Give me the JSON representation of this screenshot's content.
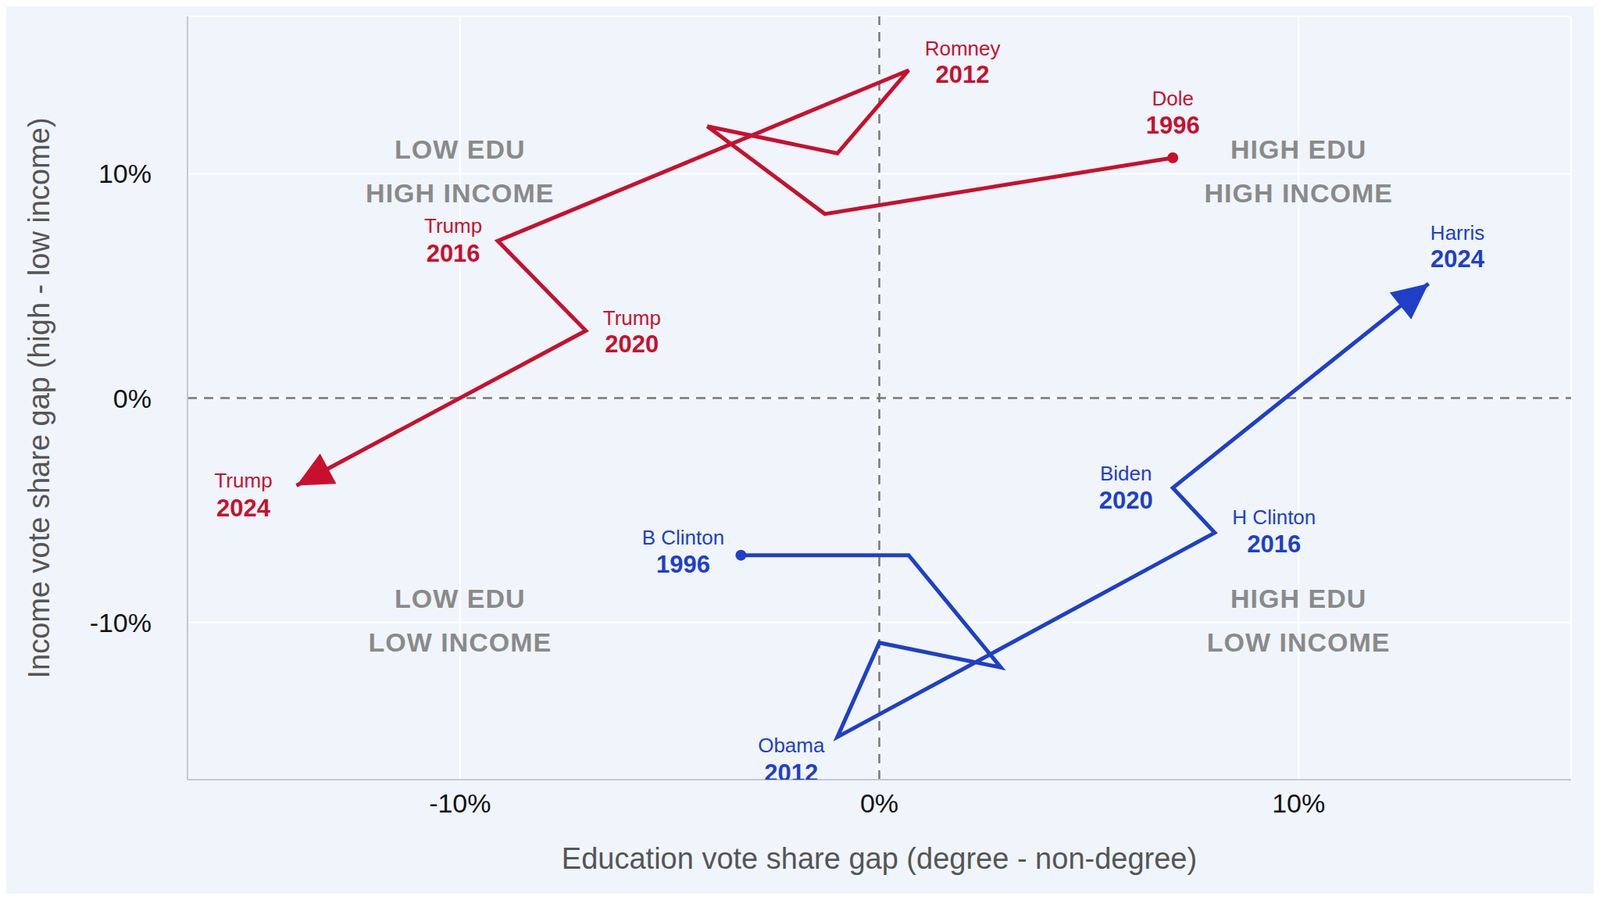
{
  "chart_data": {
    "type": "scatter",
    "xlabel": "Education vote share gap (degree - non-degree)",
    "ylabel": "Income vote share gap (high - low income)",
    "xlim": [
      -16.5,
      16.5
    ],
    "ylim": [
      -17,
      17
    ],
    "xticks": [
      {
        "value": -10,
        "label": "-10%"
      },
      {
        "value": 0,
        "label": "0%"
      },
      {
        "value": 10,
        "label": "10%"
      }
    ],
    "yticks": [
      {
        "value": -10,
        "label": "-10%"
      },
      {
        "value": 0,
        "label": "0%"
      },
      {
        "value": 10,
        "label": "10%"
      }
    ],
    "grid": true,
    "series": [
      {
        "color": "#c8102e",
        "line_style": "solid",
        "marker": "circle",
        "x": [
          7.0,
          -1.3,
          -4.1,
          -1.0,
          0.7,
          -9.1,
          -7.0,
          -13.9
        ],
        "y": [
          10.7,
          8.2,
          12.1,
          10.9,
          14.6,
          7.0,
          3.0,
          -3.9
        ],
        "names": [
          "Dole",
          null,
          null,
          null,
          "Romney",
          "Trump",
          "Trump",
          "Trump"
        ],
        "years": [
          1996,
          null,
          null,
          null,
          2012,
          2016,
          2020,
          2024
        ]
      },
      {
        "color": "#1f3fc8",
        "line_style": "solid",
        "marker": "circle",
        "x": [
          -3.3,
          0.7,
          2.9,
          0.0,
          -1.0,
          8.0,
          7.0,
          13.1
        ],
        "y": [
          -7.0,
          -7.0,
          -12.0,
          -10.9,
          -15.1,
          -6.0,
          -4.0,
          5.1
        ],
        "names": [
          "B Clinton",
          null,
          null,
          null,
          "Obama",
          "H Clinton",
          "Biden",
          "Harris"
        ],
        "years": [
          1996,
          null,
          null,
          null,
          2012,
          2016,
          2020,
          2024
        ]
      }
    ],
    "annotations": [
      {
        "lines": [
          "LOW EDU",
          "HIGH INCOME"
        ],
        "x": -10,
        "y": 10
      },
      {
        "lines": [
          "HIGH EDU",
          "HIGH INCOME"
        ],
        "x": 10,
        "y": 10
      },
      {
        "lines": [
          "LOW EDU",
          "LOW INCOME"
        ],
        "x": -10,
        "y": -10
      },
      {
        "lines": [
          "HIGH EDU",
          "LOW INCOME"
        ],
        "x": 10,
        "y": -10
      }
    ]
  }
}
